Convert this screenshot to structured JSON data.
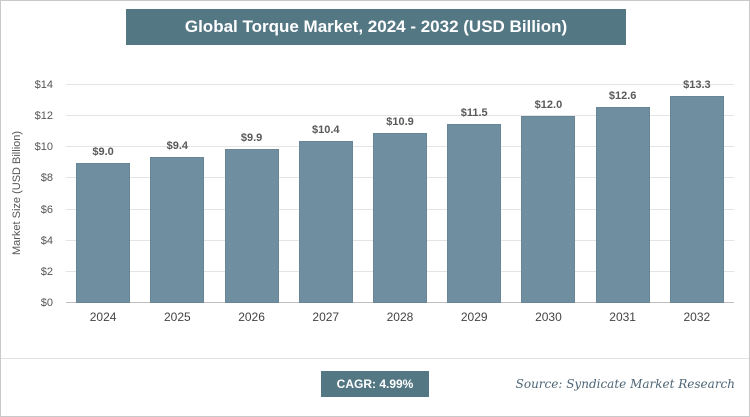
{
  "header": {
    "title": "Global Torque Market, 2024 - 2032 (USD Billion)"
  },
  "chart_data": {
    "type": "bar",
    "title": "Global Torque Market, 2024 - 2032 (USD Billion)",
    "categories": [
      "2024",
      "2025",
      "2026",
      "2027",
      "2028",
      "2029",
      "2030",
      "2031",
      "2032"
    ],
    "values": [
      9.0,
      9.4,
      9.9,
      10.4,
      10.9,
      11.5,
      12.0,
      12.6,
      13.3
    ],
    "value_labels": [
      "$9.0",
      "$9.4",
      "$9.9",
      "$10.4",
      "$10.9",
      "$11.5",
      "$12.0",
      "$12.6",
      "$13.3"
    ],
    "xlabel": "",
    "ylabel": "Market Size (USD Billion)",
    "ylim": [
      0,
      14
    ],
    "ytick_step": 2,
    "ytick_labels": [
      "$0",
      "$2",
      "$4",
      "$6",
      "$8",
      "$10",
      "$12",
      "$14"
    ],
    "grid": true,
    "legend": false
  },
  "footer": {
    "cagr_label": "CAGR: 4.99%",
    "source": "Source: Syndicate Market Research"
  },
  "colors": {
    "title_bg": "#547784",
    "badge_bg": "#547784",
    "bar": "#6f8fa0",
    "grid": "#e4e4e4"
  }
}
